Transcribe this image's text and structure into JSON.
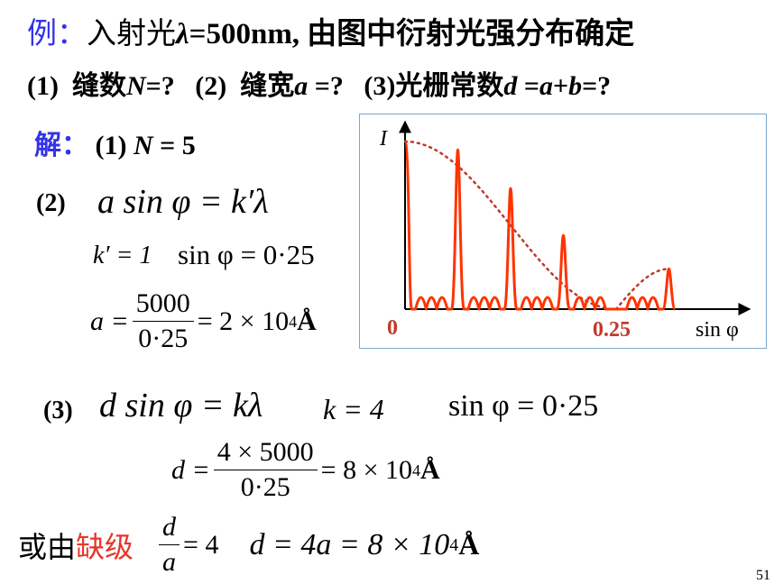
{
  "line1": {
    "label": "例：",
    "text_a": "入射光",
    "lambda": "λ",
    "text_b": "=500nm, 由图中衍射光强分布确定"
  },
  "line2": {
    "q1_num": "(1)",
    "q1_text": "缝数",
    "q1_var": "N",
    "q1_end": "=?",
    "q2_num": "(2)",
    "q2_text": "缝宽",
    "q2_var": "a",
    "q2_end": " =?",
    "q3_num": "(3)",
    "q3_text": "光栅常数",
    "q3_var1": "d",
    "q3_eq": " =",
    "q3_var2": "a",
    "q3_plus": "+",
    "q3_var3": "b",
    "q3_end": "=?"
  },
  "solution": {
    "label": "解：",
    "s1_num": "(1)",
    "s1_var": "N",
    "s1_eq": " = 5",
    "s2_num": "(2)",
    "s2_eq": "a sin φ = k′λ",
    "s2_k": "k′ = 1",
    "s2_sin": "sin φ = 0·25",
    "s2_a_lhs": "a =",
    "s2_a_num": "5000",
    "s2_a_den": "0·25",
    "s2_a_rhs": "= 2 × 10",
    "s2_a_exp": "4",
    "unit": "Å",
    "s3_num": "(3)",
    "s3_eq": "d sin φ = kλ",
    "s3_k": "k = 4",
    "s3_sin": "sin φ = 0·25",
    "s3_d_lhs": "d =",
    "s3_d_num": "4 × 5000",
    "s3_d_den": "0·25",
    "s3_d_rhs": "= 8 × 10",
    "s3_d_exp": "4",
    "alt_text": "或由",
    "alt_red": "缺级",
    "alt_frac_num": "d",
    "alt_frac_den": "a",
    "alt_eq": "= 4",
    "alt_result": "d = 4a = 8 × 10",
    "alt_exp": "4"
  },
  "chart_data": {
    "type": "line",
    "ylabel": "I",
    "xlabel": "sin φ",
    "x_ticks": [
      "0",
      "0.25"
    ],
    "envelope_color": "#c0392b",
    "curve_color": "#ff3300",
    "principal_maxima": [
      {
        "sin": 0.0,
        "intensity": 1.0
      },
      {
        "sin": 0.0625,
        "intensity": 0.95
      },
      {
        "sin": 0.125,
        "intensity": 0.72
      },
      {
        "sin": 0.1875,
        "intensity": 0.44
      },
      {
        "sin": 0.25,
        "intensity": 0.0
      },
      {
        "sin": 0.3125,
        "intensity": 0.24
      }
    ],
    "secondary_maxima_per_order": 3
  },
  "page_number": "51"
}
